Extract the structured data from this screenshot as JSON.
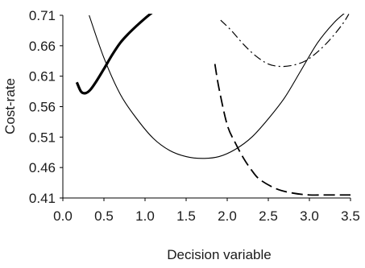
{
  "chart_data": {
    "type": "line",
    "title": "",
    "xlabel": "Decision variable",
    "ylabel": "Cost-rate",
    "xlim": [
      0.0,
      3.5
    ],
    "ylim": [
      0.41,
      0.71
    ],
    "grid": false,
    "legend": "none",
    "x_ticks": [
      "0.0",
      "0.5",
      "1.0",
      "1.5",
      "2.0",
      "2.5",
      "3.0",
      "3.5"
    ],
    "y_ticks": [
      "0.71",
      "0.66",
      "0.61",
      "0.56",
      "0.51",
      "0.46",
      "0.41"
    ],
    "series": [
      {
        "style": "thick-solid",
        "x": [
          0.17,
          0.22,
          0.27,
          0.33,
          0.4,
          0.5,
          0.6,
          0.7,
          0.8,
          0.9,
          1.0,
          1.1
        ],
        "y": [
          0.6,
          0.585,
          0.582,
          0.587,
          0.6,
          0.622,
          0.645,
          0.665,
          0.68,
          0.693,
          0.705,
          0.716
        ]
      },
      {
        "style": "thin-solid",
        "x": [
          0.32,
          0.5,
          0.7,
          0.9,
          1.1,
          1.3,
          1.5,
          1.7,
          1.9,
          2.1,
          2.3,
          2.5,
          2.7,
          2.9,
          3.1,
          3.3,
          3.45
        ],
        "y": [
          0.71,
          0.64,
          0.58,
          0.54,
          0.508,
          0.488,
          0.478,
          0.475,
          0.478,
          0.49,
          0.51,
          0.54,
          0.575,
          0.62,
          0.665,
          0.698,
          0.716
        ]
      },
      {
        "style": "dashed",
        "x": [
          1.85,
          1.9,
          2.0,
          2.1,
          2.2,
          2.3,
          2.4,
          2.6,
          2.8,
          3.0,
          3.2,
          3.5
        ],
        "y": [
          0.63,
          0.59,
          0.53,
          0.5,
          0.475,
          0.455,
          0.44,
          0.425,
          0.418,
          0.415,
          0.415,
          0.415
        ]
      },
      {
        "style": "dash-dot",
        "x": [
          1.92,
          2.05,
          2.2,
          2.35,
          2.5,
          2.65,
          2.8,
          2.95,
          3.1,
          3.25,
          3.4,
          3.48
        ],
        "y": [
          0.702,
          0.685,
          0.662,
          0.643,
          0.63,
          0.626,
          0.628,
          0.635,
          0.65,
          0.67,
          0.695,
          0.712
        ]
      }
    ]
  }
}
